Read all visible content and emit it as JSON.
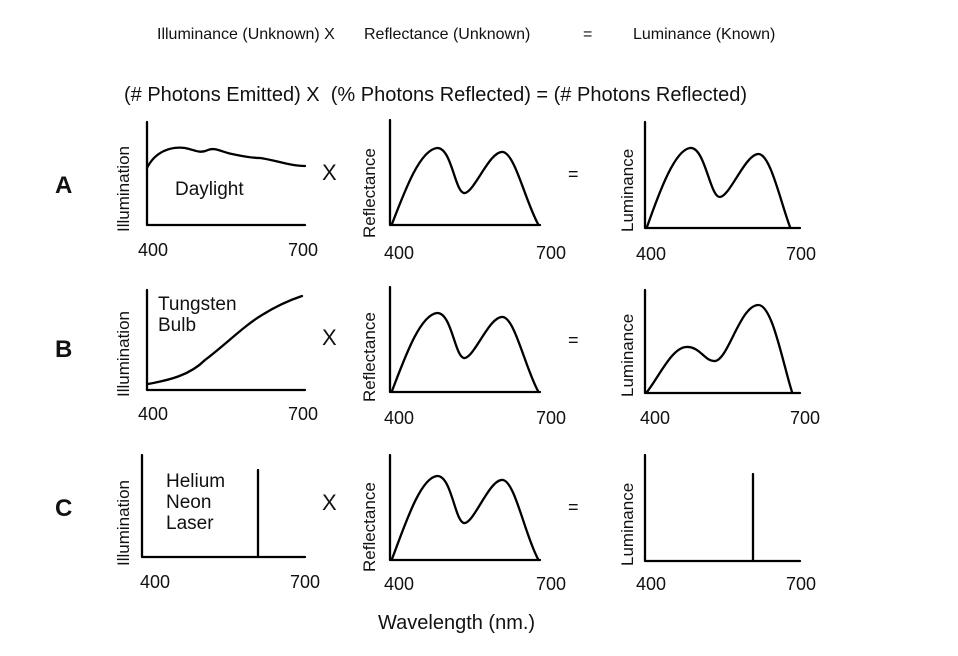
{
  "header": {
    "illuminance": "Illuminance (Unknown) X",
    "reflectance": "Reflectance (Unknown)",
    "equals": "=",
    "luminance": "Luminance (Known)"
  },
  "subtitle": "(# Photons Emitted) X  (% Photons Reflected) = (# Photons Reflected)",
  "axis_labels": {
    "illumination": "Illumination",
    "reflectance": "Reflectance",
    "luminance": "Luminance",
    "x_min": "400",
    "x_max": "700",
    "wavelength": "Wavelength (nm.)"
  },
  "operators": {
    "times": "X",
    "equals": "="
  },
  "rows": [
    {
      "letter": "A",
      "source_label": "Daylight",
      "illumination_shape": "flat-broadband",
      "luminance_shape": "two-peaks-equal"
    },
    {
      "letter": "B",
      "source_label": "Tungsten\nBulb",
      "illumination_shape": "rising",
      "luminance_shape": "two-peaks-right-higher"
    },
    {
      "letter": "C",
      "source_label": "Helium\nNeon\nLaser",
      "illumination_shape": "single-line",
      "luminance_shape": "single-line"
    }
  ]
}
